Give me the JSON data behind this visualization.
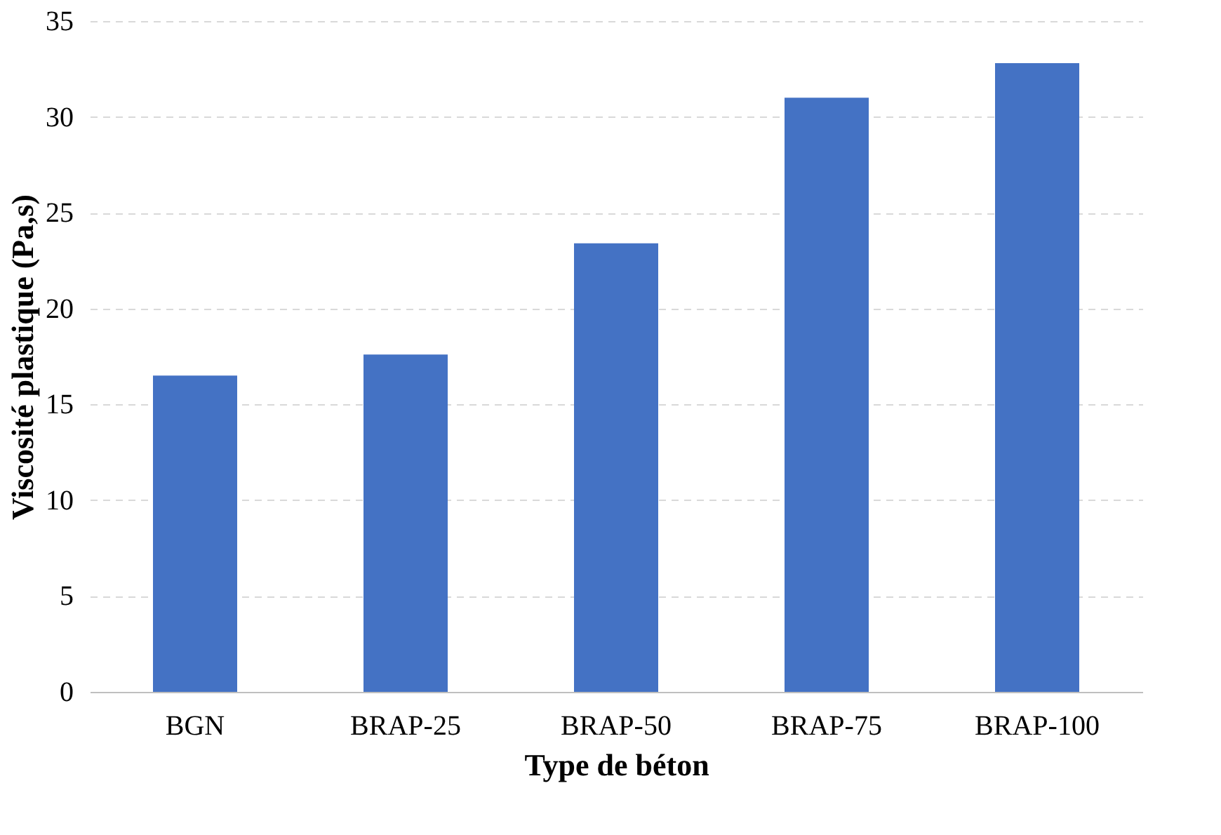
{
  "chart_data": {
    "type": "bar",
    "xlabel": "Type de béton",
    "ylabel": "Viscosité plastique (Pa,s)",
    "categories": [
      "BGN",
      "BRAP-25",
      "BRAP-50",
      "BRAP-75",
      "BRAP-100"
    ],
    "values": [
      16.5,
      17.6,
      23.4,
      31.0,
      32.8
    ],
    "color": "#4472c4",
    "ylim": [
      0,
      35
    ],
    "yticks": [
      0,
      5,
      10,
      15,
      20,
      25,
      30,
      35
    ],
    "grid": "y"
  }
}
